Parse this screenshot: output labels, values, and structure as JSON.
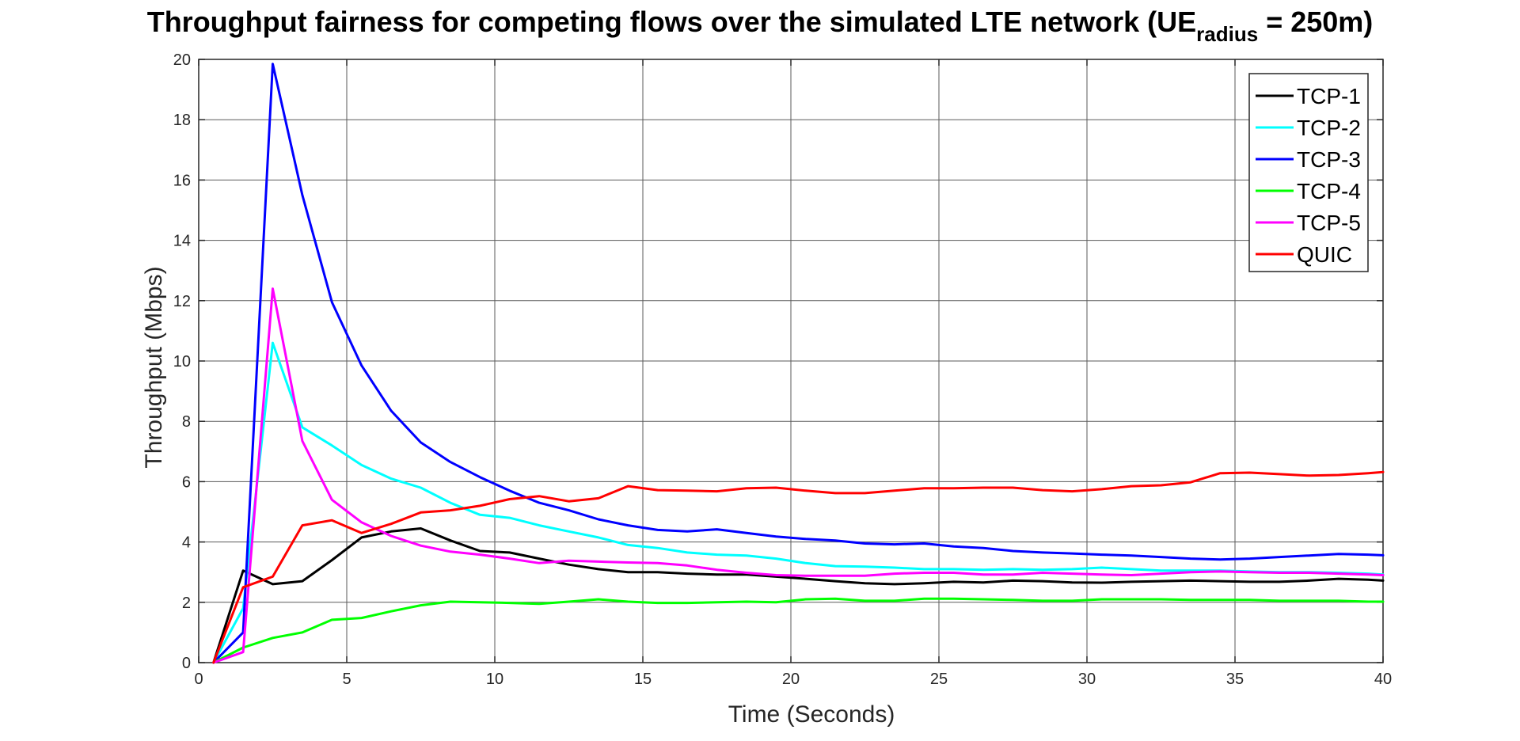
{
  "chart_data": {
    "type": "line",
    "title": {
      "main": "Throughput fairness for competing flows over the simulated LTE network (UE",
      "subscript": "radius",
      "suffix": " = 250m)"
    },
    "xlabel": "Time (Seconds)",
    "ylabel": "Throughput (Mbps)",
    "xlim": [
      0,
      40
    ],
    "ylim": [
      0,
      20
    ],
    "xticks": [
      0,
      5,
      10,
      15,
      20,
      25,
      30,
      35,
      40
    ],
    "yticks": [
      0,
      2,
      4,
      6,
      8,
      10,
      12,
      14,
      16,
      18,
      20
    ],
    "xtick_labels": [
      "0",
      "5",
      "10",
      "15",
      "20",
      "25",
      "30",
      "35",
      "40"
    ],
    "ytick_labels": [
      "0",
      "2",
      "4",
      "6",
      "8",
      "10",
      "12",
      "14",
      "16",
      "18",
      "20"
    ],
    "grid": true,
    "legend_position": "top-right",
    "x": [
      0.5,
      1.5,
      2.5,
      3.5,
      4.5,
      5.5,
      6.5,
      7.5,
      8.5,
      9.5,
      10.5,
      11.5,
      12.5,
      13.5,
      14.5,
      15.5,
      16.5,
      17.5,
      18.5,
      19.5,
      20.5,
      21.5,
      22.5,
      23.5,
      24.5,
      25.5,
      26.5,
      27.5,
      28.5,
      29.5,
      30.5,
      31.5,
      32.5,
      33.5,
      34.5,
      35.5,
      36.5,
      37.5,
      38.5,
      39.5,
      40
    ],
    "series": [
      {
        "name": "TCP-1",
        "color": "#000000",
        "values": [
          0,
          3.05,
          2.6,
          2.7,
          3.4,
          4.15,
          4.35,
          4.45,
          4.05,
          3.7,
          3.65,
          3.45,
          3.25,
          3.1,
          3.0,
          3.0,
          2.95,
          2.92,
          2.92,
          2.85,
          2.78,
          2.7,
          2.63,
          2.6,
          2.63,
          2.68,
          2.66,
          2.72,
          2.7,
          2.66,
          2.65,
          2.68,
          2.7,
          2.72,
          2.7,
          2.68,
          2.68,
          2.72,
          2.78,
          2.75,
          2.72
        ]
      },
      {
        "name": "TCP-2",
        "color": "#00FFFF",
        "values": [
          0,
          1.8,
          10.6,
          7.8,
          7.2,
          6.55,
          6.1,
          5.8,
          5.3,
          4.9,
          4.8,
          4.55,
          4.35,
          4.15,
          3.9,
          3.8,
          3.65,
          3.58,
          3.55,
          3.45,
          3.3,
          3.2,
          3.18,
          3.15,
          3.1,
          3.1,
          3.08,
          3.1,
          3.08,
          3.1,
          3.15,
          3.1,
          3.05,
          3.05,
          3.05,
          3.02,
          3.0,
          3.0,
          2.98,
          2.95,
          2.92
        ]
      },
      {
        "name": "TCP-3",
        "color": "#0000FF",
        "values": [
          0,
          1.0,
          19.85,
          15.5,
          11.95,
          9.85,
          8.35,
          7.3,
          6.65,
          6.15,
          5.7,
          5.3,
          5.05,
          4.75,
          4.55,
          4.4,
          4.35,
          4.42,
          4.3,
          4.18,
          4.1,
          4.05,
          3.95,
          3.92,
          3.95,
          3.85,
          3.8,
          3.7,
          3.65,
          3.62,
          3.58,
          3.55,
          3.5,
          3.45,
          3.42,
          3.45,
          3.5,
          3.55,
          3.6,
          3.58,
          3.56
        ]
      },
      {
        "name": "TCP-4",
        "color": "#00FF00",
        "values": [
          0,
          0.5,
          0.82,
          1.0,
          1.42,
          1.48,
          1.7,
          1.9,
          2.02,
          2.0,
          1.98,
          1.95,
          2.02,
          2.1,
          2.02,
          1.98,
          1.98,
          2.0,
          2.02,
          2.0,
          2.1,
          2.12,
          2.05,
          2.05,
          2.12,
          2.12,
          2.1,
          2.08,
          2.05,
          2.05,
          2.1,
          2.1,
          2.1,
          2.08,
          2.08,
          2.08,
          2.05,
          2.05,
          2.05,
          2.02,
          2.02
        ]
      },
      {
        "name": "TCP-5",
        "color": "#FF00FF",
        "values": [
          0,
          0.35,
          12.4,
          7.35,
          5.4,
          4.65,
          4.2,
          3.88,
          3.68,
          3.58,
          3.45,
          3.3,
          3.38,
          3.35,
          3.32,
          3.3,
          3.22,
          3.08,
          2.98,
          2.9,
          2.88,
          2.88,
          2.88,
          2.95,
          2.98,
          2.98,
          2.92,
          2.92,
          2.98,
          2.95,
          2.92,
          2.9,
          2.95,
          3.0,
          3.02,
          3.0,
          2.98,
          2.98,
          2.95,
          2.92,
          2.9
        ]
      },
      {
        "name": "QUIC",
        "color": "#FF0000",
        "values": [
          0,
          2.5,
          2.85,
          4.55,
          4.72,
          4.3,
          4.6,
          4.98,
          5.05,
          5.2,
          5.42,
          5.52,
          5.35,
          5.45,
          5.85,
          5.72,
          5.7,
          5.68,
          5.78,
          5.8,
          5.7,
          5.62,
          5.62,
          5.7,
          5.78,
          5.78,
          5.8,
          5.8,
          5.72,
          5.68,
          5.75,
          5.85,
          5.88,
          5.98,
          6.28,
          6.3,
          6.25,
          6.2,
          6.22,
          6.28,
          6.32
        ]
      }
    ]
  }
}
